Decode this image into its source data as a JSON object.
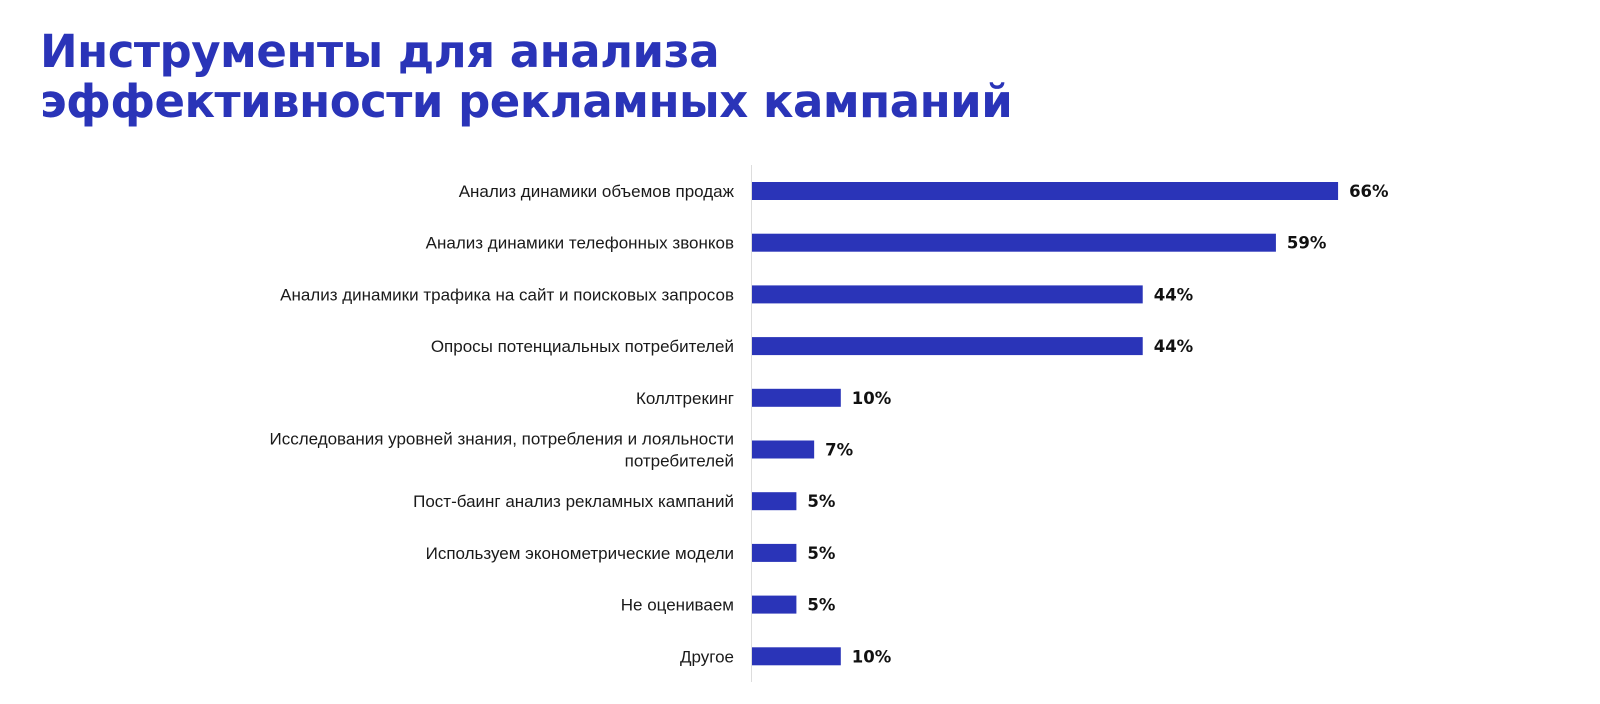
{
  "title": {
    "line1": "Инструменты для анализа",
    "line2": "эффективности рекламных кампаний"
  },
  "colors": {
    "title": "#2a34b8",
    "bar": "#2a34b8",
    "axis": "#dddddd"
  },
  "chart_data": {
    "type": "bar",
    "orientation": "horizontal",
    "title": "Инструменты для анализа эффективности рекламных кампаний",
    "xlabel": "",
    "ylabel": "",
    "xlim": [
      0,
      100
    ],
    "grid": false,
    "legend": "none",
    "categories": [
      [
        "Анализ динамики объемов продаж"
      ],
      [
        "Анализ динамики телефонных звонков"
      ],
      [
        "Анализ динамики трафика на сайт и поисковых запросов"
      ],
      [
        "Опросы потенциальных потребителей"
      ],
      [
        "Коллтрекинг"
      ],
      [
        "Исследования уровней знания, потребления и лояльности",
        "потребителей"
      ],
      [
        "Пост-баинг анализ рекламных кампаний"
      ],
      [
        "Используем эконометрические модели"
      ],
      [
        "Не оцениваем"
      ],
      [
        "Другое"
      ]
    ],
    "values": [
      66,
      59,
      44,
      44,
      10,
      7,
      5,
      5,
      5,
      10
    ],
    "value_labels": [
      "66%",
      "59%",
      "44%",
      "44%",
      "10%",
      "7%",
      "5%",
      "5%",
      "5%",
      "10%"
    ]
  }
}
